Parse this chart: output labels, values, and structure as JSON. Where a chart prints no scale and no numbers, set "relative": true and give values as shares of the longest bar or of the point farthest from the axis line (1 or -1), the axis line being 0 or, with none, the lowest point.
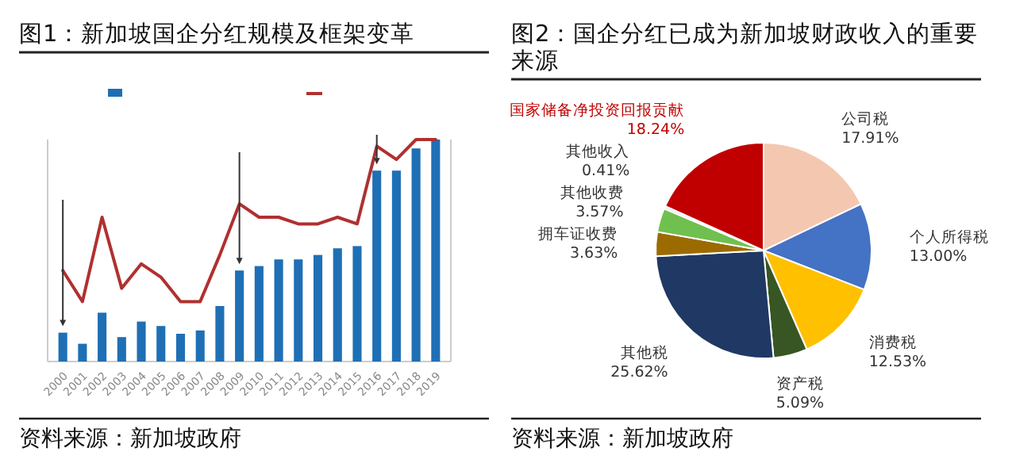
{
  "chart_data": [
    {
      "type": "bar",
      "title": "图1：新加坡国企分红规模及框架变革",
      "relative": true,
      "categories": [
        "2000",
        "2001",
        "2002",
        "2003",
        "2004",
        "2005",
        "2006",
        "2007",
        "2008",
        "2009",
        "2010",
        "2011",
        "2012",
        "2013",
        "2014",
        "2015",
        "2016",
        "2017",
        "2018",
        "2019"
      ],
      "series": [
        {
          "type": "bar",
          "color": "#1f6fb5",
          "values": [
            0.13,
            0.08,
            0.22,
            0.11,
            0.18,
            0.16,
            0.125,
            0.14,
            0.25,
            0.41,
            0.43,
            0.46,
            0.46,
            0.48,
            0.51,
            0.52,
            0.86,
            0.86,
            0.96,
            1
          ]
        },
        {
          "type": "line",
          "axis": "y2",
          "color": "#b03030",
          "values": [
            0.41,
            0.27,
            0.65,
            0.33,
            0.44,
            0.38,
            0.27,
            0.27,
            0.48,
            0.71,
            0.65,
            0.65,
            0.62,
            0.62,
            0.65,
            0.62,
            0.97,
            0.91,
            1,
            1
          ]
        }
      ],
      "annotations": [
        "资料来源：新加坡政府"
      ]
    },
    {
      "type": "pie",
      "title": "图2：国企分红已成为新加坡财政收入的重要来源",
      "categories": [
        "公司税",
        "个人所得税",
        "消费税",
        "资产税",
        "其他税",
        "拥车证收费",
        "其他收费",
        "其他收入",
        "国家储备净投资回报贡献"
      ],
      "values": [
        17.91,
        13.0,
        12.53,
        5.09,
        25.62,
        3.63,
        3.57,
        0.41,
        18.24
      ],
      "value_labels": [
        "17.91%",
        "13.00%",
        "12.53%",
        "5.09%",
        "25.62%",
        "3.63%",
        "3.57%",
        "0.41%",
        "18.24%"
      ],
      "colors": [
        "#f4c7b0",
        "#4472c4",
        "#ffc000",
        "#375623",
        "#203864",
        "#9c6b00",
        "#70c050",
        "#e8e8e8",
        "#c00000"
      ],
      "annotations": [
        "资料来源：新加坡政府"
      ]
    }
  ]
}
